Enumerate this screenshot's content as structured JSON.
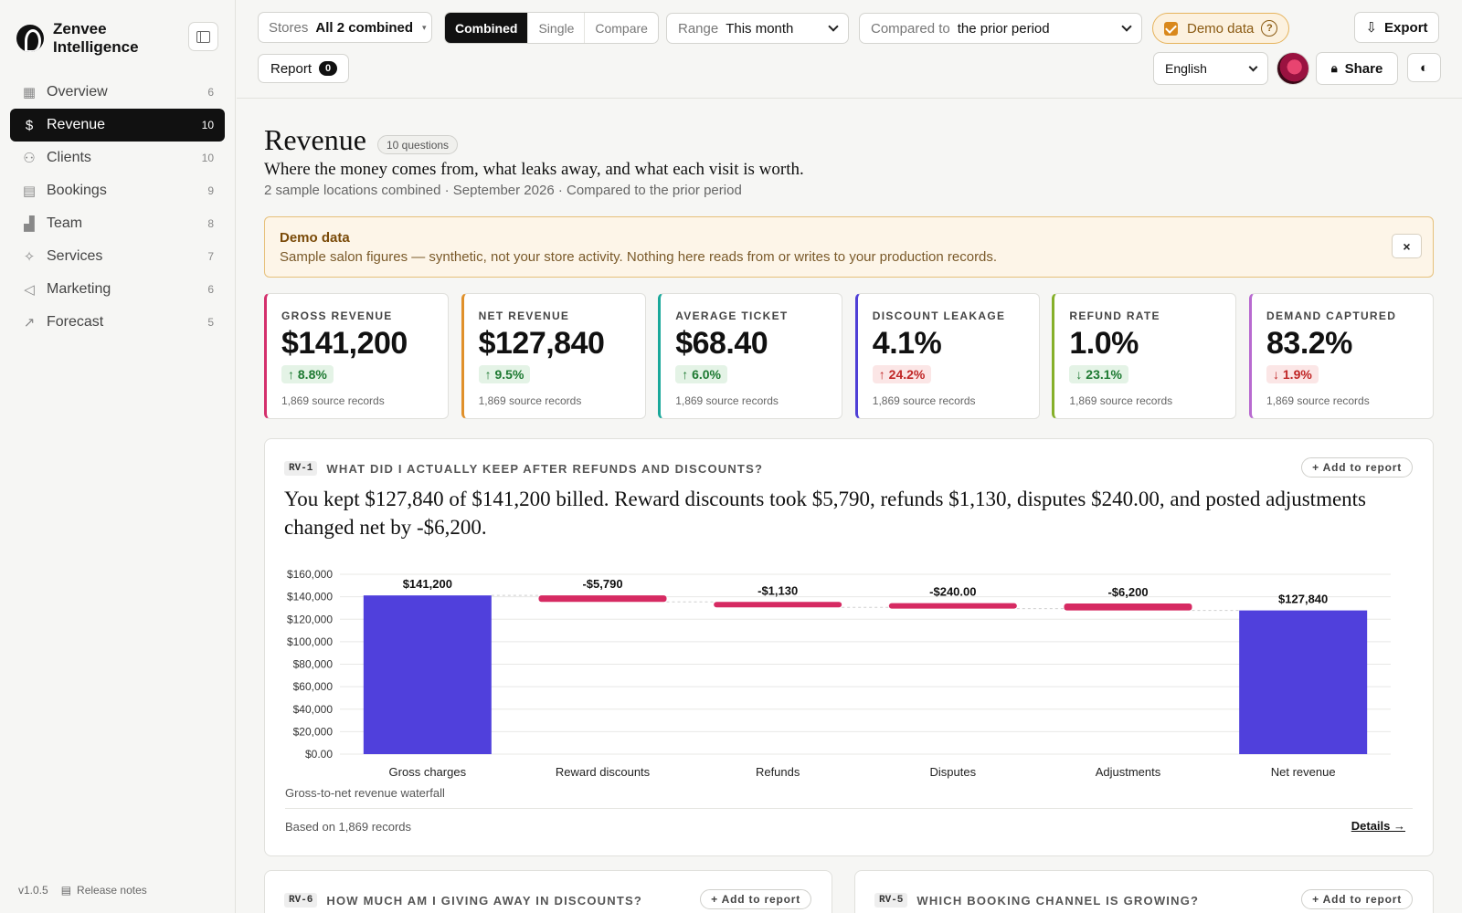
{
  "brand": {
    "name_line1": "Zenvee",
    "name_line2": "Intelligence"
  },
  "nav": [
    {
      "label": "Overview",
      "count": "6",
      "icon": "grid-icon",
      "glyph": "▦"
    },
    {
      "label": "Revenue",
      "count": "10",
      "icon": "dollar-icon",
      "glyph": "$"
    },
    {
      "label": "Clients",
      "count": "10",
      "icon": "users-icon",
      "glyph": "⚇"
    },
    {
      "label": "Bookings",
      "count": "9",
      "icon": "calendar-icon",
      "glyph": "▤"
    },
    {
      "label": "Team",
      "count": "8",
      "icon": "bar-chart-icon",
      "glyph": "▟"
    },
    {
      "label": "Services",
      "count": "7",
      "icon": "sparkle-icon",
      "glyph": "✧"
    },
    {
      "label": "Marketing",
      "count": "6",
      "icon": "megaphone-icon",
      "glyph": "◁"
    },
    {
      "label": "Forecast",
      "count": "5",
      "icon": "trend-icon",
      "glyph": "↗"
    }
  ],
  "active_nav": "Revenue",
  "footer": {
    "version": "v1.0.5",
    "release_notes": "Release notes"
  },
  "toolbar": {
    "stores_label": "Stores",
    "stores_value": "All 2 combined",
    "modes": [
      "Combined",
      "Single",
      "Compare"
    ],
    "active_mode": "Combined",
    "range_label": "Range",
    "range_value": "This month",
    "compare_label": "Compared to",
    "compare_value": "the prior period",
    "demo_label": "Demo data",
    "export_label": "Export",
    "report_label": "Report",
    "report_count": "0",
    "language": "English",
    "share_label": "Share"
  },
  "page": {
    "title": "Revenue",
    "questions_badge": "10 questions",
    "subtitle": "Where the money comes from, what leaks away, and what each visit is worth.",
    "meta": "2 sample locations combined · September 2026 · Compared to the prior period"
  },
  "banner": {
    "title": "Demo data",
    "body": "Sample salon figures — synthetic, not your store activity. Nothing here reads from or writes to your production records.",
    "close": "×"
  },
  "kpis": [
    {
      "label": "GROSS REVENUE",
      "value": "$141,200",
      "delta": "↑ 8.8%",
      "tone": "up",
      "source": "1,869 source records",
      "color": "#d4306c"
    },
    {
      "label": "NET REVENUE",
      "value": "$127,840",
      "delta": "↑ 9.5%",
      "tone": "up",
      "source": "1,869 source records",
      "color": "#e0902a"
    },
    {
      "label": "AVERAGE TICKET",
      "value": "$68.40",
      "delta": "↑ 6.0%",
      "tone": "up",
      "source": "1,869 source records",
      "color": "#1aa89a"
    },
    {
      "label": "DISCOUNT LEAKAGE",
      "value": "4.1%",
      "delta": "↑ 24.2%",
      "tone": "bad",
      "source": "1,869 source records",
      "color": "#4f3fd6"
    },
    {
      "label": "REFUND RATE",
      "value": "1.0%",
      "delta": "↓ 23.1%",
      "tone": "up",
      "source": "1,869 source records",
      "color": "#86b02a"
    },
    {
      "label": "DEMAND CAPTURED",
      "value": "83.2%",
      "delta": "↓ 1.9%",
      "tone": "bad",
      "source": "1,869 source records",
      "color": "#b86ad0"
    }
  ],
  "card": {
    "tag": "RV-1",
    "question": "WHAT DID I ACTUALLY KEEP AFTER REFUNDS AND DISCOUNTS?",
    "add_label": "+ Add to report",
    "answer": "You kept $127,840 of $141,200 billed. Reward discounts took $5,790, refunds $1,130, disputes $240.00, and posted adjustments changed net by -$6,200.",
    "caption": "Gross-to-net revenue waterfall",
    "footer": "Based on 1,869 records",
    "details": "Details →"
  },
  "chart_data": {
    "type": "bar",
    "subtype": "waterfall",
    "categories": [
      "Gross charges",
      "Reward discounts",
      "Refunds",
      "Disputes",
      "Adjustments",
      "Net revenue"
    ],
    "values": [
      141200,
      -5790,
      -1130,
      -240,
      -6200,
      127840
    ],
    "data_labels": [
      "$141,200",
      "-$5,790",
      "-$1,130",
      "-$240.00",
      "-$6,200",
      "$127,840"
    ],
    "y_ticks": [
      "$0.00",
      "$20,000",
      "$40,000",
      "$60,000",
      "$80,000",
      "$100,000",
      "$120,000",
      "$140,000",
      "$160,000"
    ],
    "ylim": [
      0,
      160000
    ],
    "grid": true,
    "colors": {
      "total": "#5040dc",
      "decrease": "#d62a62"
    }
  },
  "more_cards": [
    {
      "tag": "RV-6",
      "question": "HOW MUCH AM I GIVING AWAY IN DISCOUNTS?",
      "add_label": "+ Add to report"
    },
    {
      "tag": "RV-5",
      "question": "WHICH BOOKING CHANNEL IS GROWING?",
      "add_label": "+ Add to report"
    }
  ]
}
